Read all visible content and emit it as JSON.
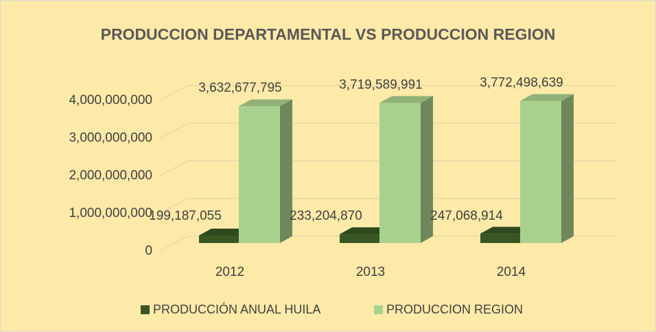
{
  "chart_data": {
    "type": "bar3d",
    "title": "PRODUCCION DEPARTAMENTAL VS PRODUCCION REGION",
    "categories": [
      "2012",
      "2013",
      "2014"
    ],
    "series": [
      {
        "name": "PRODUCCIÓN ANUAL HUILA",
        "color": "#375623",
        "values": [
          199187055,
          233204870,
          247068914
        ],
        "value_labels": [
          "199,187,055",
          "233,204,870",
          "247,068,914"
        ]
      },
      {
        "name": "PRODUCCION REGION",
        "color": "#a9d18e",
        "values": [
          3632677795,
          3719589991,
          3772498639
        ],
        "value_labels": [
          "3,632,677,795",
          "3,719,589,991",
          "3,772,498,639"
        ]
      }
    ],
    "ylim": [
      0,
      4000000000
    ],
    "yticks": [
      0,
      {
        "value": 1000000000,
        "label": "1,000,000,000"
      },
      {
        "value": 2000000000,
        "label": "2,000,000,000"
      },
      {
        "value": 3000000000,
        "label": "3,000,000,000"
      },
      {
        "value": 4000000000,
        "label": "4,000,000,000"
      }
    ],
    "grid": true,
    "legend": "bottom"
  }
}
